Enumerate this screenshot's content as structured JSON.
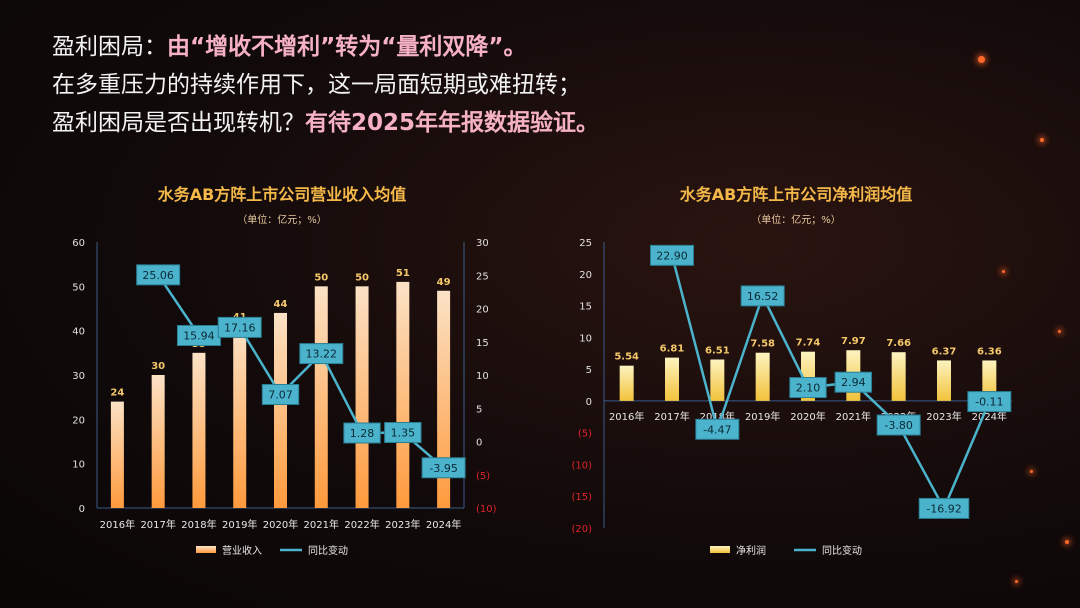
{
  "headline": {
    "line1_prefix": "盈利困局：",
    "line1_highlight": "由“增收不增利”转为“量利双降”。",
    "line2": "在多重压力的持续作用下，这一局面短期或难扭转；",
    "line3_prefix": "盈利困局是否出现转机？",
    "line3_highlight": "有待2025年年报数据验证。"
  },
  "colors": {
    "bar_left_top": "#fbe2c6",
    "bar_left_bottom": "#ff9a3c",
    "bar_right_top": "#fdf3c0",
    "bar_right_bottom": "#f2c23a",
    "line": "#4cb3cc",
    "title": "#f5b94a",
    "value": "#f5c86a",
    "neg_tick": "#e0242a"
  },
  "chart_data": [
    {
      "type": "bar",
      "title": "水务AB方阵上市公司营业收入均值",
      "subtitle": "（单位：亿元；%）",
      "categories": [
        "2016年",
        "2017年",
        "2018年",
        "2019年",
        "2020年",
        "2021年",
        "2022年",
        "2023年",
        "2024年"
      ],
      "series": [
        {
          "name": "营业收入",
          "type": "bar",
          "axis": "left",
          "values": [
            24,
            30,
            35,
            41,
            44,
            50,
            50,
            51,
            49
          ]
        },
        {
          "name": "同比变动",
          "type": "line",
          "axis": "right",
          "values": [
            null,
            25.06,
            15.94,
            17.16,
            7.07,
            13.22,
            1.28,
            1.35,
            -3.95
          ]
        }
      ],
      "left_axis": {
        "ylim": [
          0,
          60
        ],
        "ticks": [
          "0",
          "10",
          "20",
          "30",
          "40",
          "50",
          "60"
        ]
      },
      "right_axis": {
        "ylim": [
          -10,
          30
        ],
        "ticks": [
          "(10)",
          "(5)",
          "0",
          "5",
          "10",
          "15",
          "20",
          "25",
          "30"
        ]
      },
      "bar_labels": [
        "24",
        "30",
        "35",
        "41",
        "44",
        "50",
        "50",
        "51",
        "49"
      ],
      "line_labels": [
        "",
        "25.06",
        "15.94",
        "17.16",
        "7.07",
        "13.22",
        "1.28",
        "1.35",
        "-3.95"
      ],
      "legend": [
        "营业收入",
        "同比变动"
      ],
      "legend_position": "bottom"
    },
    {
      "type": "bar",
      "title": "水务AB方阵上市公司净利润均值",
      "subtitle": "（单位：亿元；%）",
      "categories": [
        "2016年",
        "2017年",
        "2018年",
        "2019年",
        "2020年",
        "2021年",
        "2022年",
        "2023年",
        "2024年"
      ],
      "series": [
        {
          "name": "净利润",
          "type": "bar",
          "axis": "left",
          "values": [
            5.54,
            6.81,
            6.51,
            7.58,
            7.74,
            7.97,
            7.66,
            6.37,
            6.36
          ]
        },
        {
          "name": "同比变动",
          "type": "line",
          "axis": "left",
          "values": [
            null,
            22.9,
            -4.47,
            16.52,
            2.1,
            2.94,
            -3.8,
            -16.92,
            -0.11
          ]
        }
      ],
      "left_axis": {
        "ylim": [
          -20,
          25
        ],
        "ticks": [
          "(20)",
          "(15)",
          "(10)",
          "(5)",
          "0",
          "5",
          "10",
          "15",
          "20",
          "25"
        ]
      },
      "bar_labels": [
        "5.54",
        "6.81",
        "6.51",
        "7.58",
        "7.74",
        "7.97",
        "7.66",
        "6.37",
        "6.36"
      ],
      "line_labels": [
        "",
        "22.90",
        "-4.47",
        "16.52",
        "2.10",
        "2.94",
        "-3.80",
        "-16.92",
        "-0.11"
      ],
      "legend": [
        "净利润",
        "同比变动"
      ],
      "legend_position": "bottom"
    }
  ]
}
